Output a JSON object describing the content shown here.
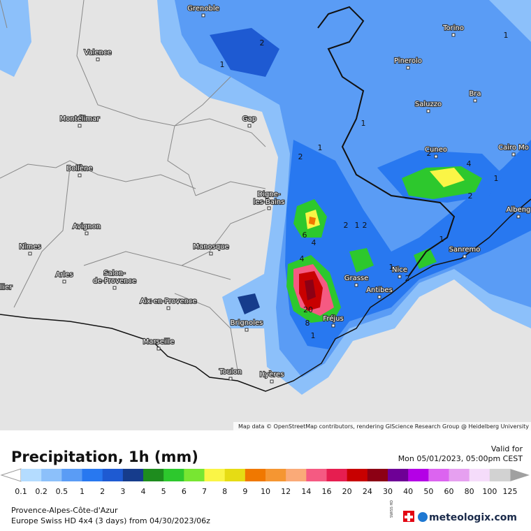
{
  "map": {
    "cities": [
      {
        "lines": [
          "Grenoble"
        ]
      },
      {
        "lines": [
          "Torino"
        ]
      },
      {
        "lines": [
          "Valence"
        ]
      },
      {
        "lines": [
          "Pinerolo"
        ]
      },
      {
        "lines": [
          "Bra"
        ]
      },
      {
        "lines": [
          "Saluzzo"
        ]
      },
      {
        "lines": [
          "Montélimar"
        ]
      },
      {
        "lines": [
          "Gap"
        ]
      },
      {
        "lines": [
          "Cuneo"
        ]
      },
      {
        "lines": [
          "Cairo Mo"
        ]
      },
      {
        "lines": [
          "Bollène"
        ]
      },
      {
        "lines": [
          "Digne-",
          "les-Bains"
        ]
      },
      {
        "lines": [
          "Albeng"
        ]
      },
      {
        "lines": [
          "Avignon"
        ]
      },
      {
        "lines": [
          "Manosque"
        ]
      },
      {
        "lines": [
          "Nîmes"
        ]
      },
      {
        "lines": [
          "Sanremo"
        ]
      },
      {
        "lines": [
          "Arles"
        ]
      },
      {
        "lines": [
          "Salon-",
          "de-Provence"
        ]
      },
      {
        "lines": [
          "Nice"
        ]
      },
      {
        "lines": [
          "Grasse"
        ]
      },
      {
        "lines": [
          "Antibes"
        ]
      },
      {
        "lines": [
          "Aix-en-Provence"
        ]
      },
      {
        "lines": [
          "Fréjus"
        ]
      },
      {
        "lines": [
          "Brignoles"
        ]
      },
      {
        "lines": [
          "Marseille"
        ]
      },
      {
        "lines": [
          "Toulon"
        ]
      },
      {
        "lines": [
          "Hyères"
        ]
      },
      {
        "lines": [
          "llier"
        ]
      }
    ],
    "contour_labels": [
      2,
      1,
      1,
      2,
      1,
      6,
      4,
      2,
      1,
      2,
      4,
      1,
      1,
      2,
      20,
      8,
      1,
      2,
      1,
      1,
      2,
      4
    ],
    "attribution": "Map data © OpenStreetMap contributors, rendering GIScience Research Group @ Heidelberg University"
  },
  "legend": {
    "title": "Precipitation, 1h (mm)",
    "valid_label": "Valid for",
    "valid_time": "Mon 05/01/2023, 05:00pm CEST",
    "labels": [
      0.1,
      0.2,
      0.5,
      1,
      2,
      3,
      4,
      5,
      6,
      7,
      8,
      9,
      10,
      12,
      14,
      16,
      20,
      24,
      30,
      40,
      50,
      60,
      80,
      100,
      125
    ],
    "colors": [
      "#b4dcff",
      "#8cc0fa",
      "#5a9cf5",
      "#2878f0",
      "#1e5ad2",
      "#163c8c",
      "#1e8c1e",
      "#2dc82d",
      "#78e632",
      "#faf546",
      "#e6dc14",
      "#f07800",
      "#f59632",
      "#faaa78",
      "#f55a82",
      "#e61e50",
      "#c80000",
      "#8c0014",
      "#6e0096",
      "#b400e6",
      "#dc64f0",
      "#e6a0f0",
      "#f5dcfa",
      "#d2d2d2"
    ],
    "region": "Provence-Alpes-Côte-d'Azur",
    "model": "Europe Swiss HD 4x4 (3 days) from 04/30/2023/06z",
    "badge": "SWISS HD",
    "brand": "meteologix.com"
  }
}
